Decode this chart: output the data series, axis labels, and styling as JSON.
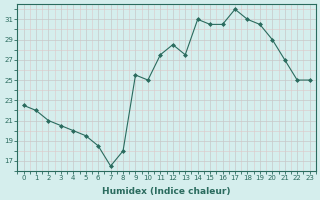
{
  "x": [
    0,
    1,
    2,
    3,
    4,
    5,
    6,
    7,
    8,
    9,
    10,
    11,
    12,
    13,
    14,
    15,
    16,
    17,
    18,
    19,
    20,
    21,
    22,
    23
  ],
  "y": [
    22.5,
    22.0,
    21.0,
    20.5,
    20.0,
    19.5,
    18.5,
    16.5,
    18.0,
    25.5,
    25.0,
    27.5,
    28.5,
    27.5,
    31.0,
    30.5,
    30.5,
    32.0,
    31.0,
    30.5,
    29.0,
    27.0,
    25.0,
    25.0
  ],
  "xlabel": "Humidex (Indice chaleur)",
  "xlim": [
    -0.5,
    23.5
  ],
  "ylim": [
    16,
    32.5
  ],
  "yticks": [
    17,
    19,
    21,
    23,
    25,
    27,
    29,
    31
  ],
  "xticks": [
    0,
    1,
    2,
    3,
    4,
    5,
    6,
    7,
    8,
    9,
    10,
    11,
    12,
    13,
    14,
    15,
    16,
    17,
    18,
    19,
    20,
    21,
    22,
    23
  ],
  "line_color": "#2a6b5e",
  "marker": "D",
  "marker_size": 2.0,
  "bg_color": "#d5eeed",
  "grid_color_major": "#c8c8c8",
  "grid_color_minor": "#ddc8c8",
  "tick_color": "#2a6b5e",
  "label_color": "#2a6b5e",
  "xlabel_fontsize": 6.5,
  "tick_fontsize": 5.0
}
